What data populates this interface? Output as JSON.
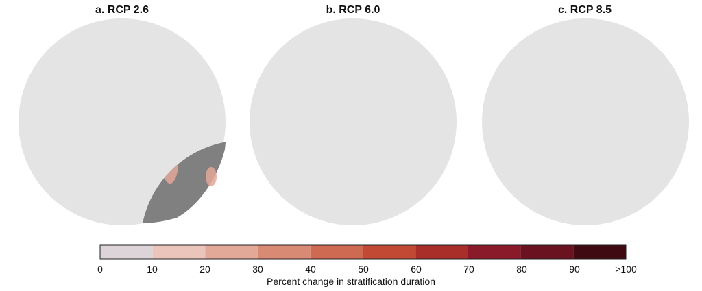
{
  "panels": [
    {
      "title": "a. RCP 2.6",
      "intensity": 0.3
    },
    {
      "title": "b. RCP 6.0",
      "intensity": 0.55
    },
    {
      "title": "c. RCP 8.5",
      "intensity": 0.95
    }
  ],
  "colorbar": {
    "label": "Percent change in stratification duration",
    "ticks": [
      "0",
      "10",
      "20",
      "30",
      "40",
      "50",
      "60",
      "70",
      "80",
      "90",
      ">100"
    ],
    "colors": [
      "#dcd4d8",
      "#ebc4bc",
      "#e2a898",
      "#d98a74",
      "#cf6a52",
      "#c24a34",
      "#a92e2a",
      "#8a1a2a",
      "#6a1220",
      "#3f0a12"
    ]
  },
  "colors": {
    "ocean": "#e4e4e4",
    "land": "#808080",
    "frame": "#222222"
  }
}
